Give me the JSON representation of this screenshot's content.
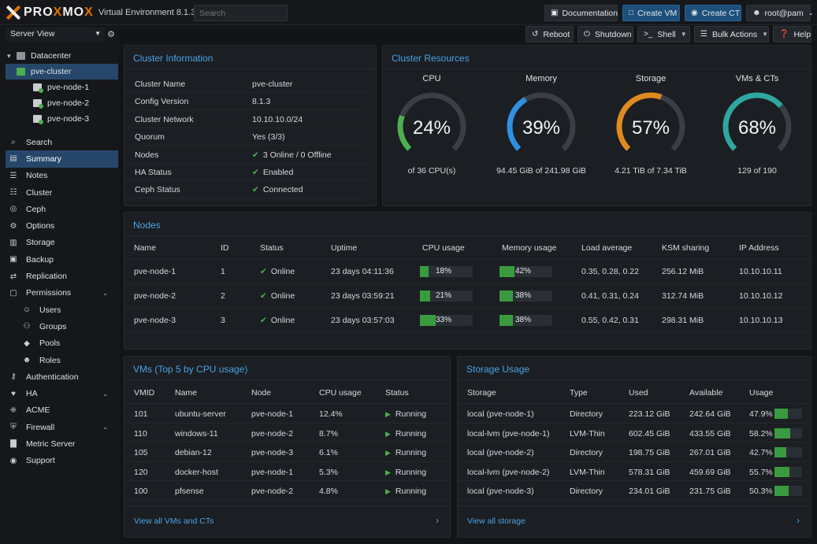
{
  "app": {
    "brand_a": "PRO",
    "brand_b": "X",
    "brand_c": "MO",
    "brand_d": "X",
    "version": "Virtual Environment 8.1.3",
    "search_placeholder": "Search"
  },
  "topbar": {
    "documentation": "Documentation",
    "create_vm": "Create VM",
    "create_ct": "Create CT",
    "user": "root@pam"
  },
  "actions": {
    "reboot": "Reboot",
    "shutdown": "Shutdown",
    "shell": "Shell",
    "bulk": "Bulk Actions",
    "help": "Help"
  },
  "sidebar": {
    "view": "Server View",
    "tree": [
      {
        "label": "Datacenter",
        "type": "dc"
      },
      {
        "label": "pve-cluster",
        "type": "cl"
      },
      {
        "label": "pve-node-1",
        "type": "nd"
      },
      {
        "label": "pve-node-2",
        "type": "nd"
      },
      {
        "label": "pve-node-3",
        "type": "nd"
      }
    ],
    "menu": [
      {
        "label": "Search",
        "icon": "search-icon"
      },
      {
        "label": "Summary",
        "icon": "book-icon"
      },
      {
        "label": "Notes",
        "icon": "notes-icon"
      },
      {
        "label": "Cluster",
        "icon": "server-icon"
      },
      {
        "label": "Ceph",
        "icon": "ceph-icon"
      },
      {
        "label": "Options",
        "icon": "gear-icon"
      },
      {
        "label": "Storage",
        "icon": "database-icon"
      },
      {
        "label": "Backup",
        "icon": "save-icon"
      },
      {
        "label": "Replication",
        "icon": "retweet-icon"
      },
      {
        "label": "Permissions",
        "icon": "unlock-icon"
      },
      {
        "label": "Users",
        "icon": "user-icon"
      },
      {
        "label": "Groups",
        "icon": "users-icon"
      },
      {
        "label": "Pools",
        "icon": "tags-icon"
      },
      {
        "label": "Roles",
        "icon": "male-icon"
      },
      {
        "label": "Authentication",
        "icon": "key-icon"
      },
      {
        "label": "HA",
        "icon": "heartbeat-icon"
      },
      {
        "label": "ACME",
        "icon": "certificate-icon"
      },
      {
        "label": "Firewall",
        "icon": "shield-icon"
      },
      {
        "label": "Metric Server",
        "icon": "bar-chart-icon"
      },
      {
        "label": "Support",
        "icon": "support-icon"
      }
    ]
  },
  "cluster_info": {
    "title": "Cluster Information",
    "rows": [
      {
        "k": "Cluster Name",
        "v": "pve-cluster"
      },
      {
        "k": "Config Version",
        "v": "8.1.3"
      },
      {
        "k": "Cluster Network",
        "v": "10.10.10.0/24"
      },
      {
        "k": "Quorum",
        "v": "Yes (3/3)"
      },
      {
        "k": "Nodes",
        "v": "3 Online / 0 Offline"
      },
      {
        "k": "HA Status",
        "v": "Enabled"
      },
      {
        "k": "Ceph Status",
        "v": "Connected"
      }
    ]
  },
  "resources": {
    "title": "Cluster Resources",
    "gauges": [
      {
        "label": "CPU",
        "pct_text": "24%",
        "value": 24,
        "sub": "of 36 CPU(s)",
        "color": "#4caf50"
      },
      {
        "label": "Memory",
        "pct_text": "39%",
        "value": 39,
        "sub": "94.45 GiB of 241.98 GiB",
        "color": "#2f8fe0"
      },
      {
        "label": "Storage",
        "pct_text": "57%",
        "value": 57,
        "sub": "4.21 TiB of 7.34 TiB",
        "color": "#e08a1e"
      },
      {
        "label": "VMs & CTs",
        "pct_text": "68%",
        "value": 68,
        "sub": "129 of 190",
        "color": "#2fa7a0"
      }
    ]
  },
  "nodes": {
    "title": "Nodes",
    "headers": [
      "Name",
      "ID",
      "Status",
      "Uptime",
      "CPU usage",
      "Memory usage",
      "Load average",
      "KSM sharing",
      "IP Address"
    ],
    "rows": [
      {
        "name": "pve-node-1",
        "id": "1",
        "status": "Online",
        "uptime": "23 days 04:11:36",
        "cpu": "18%",
        "cpu_v": 18,
        "mem": "42%",
        "mem_v": 42,
        "load": "0.35, 0.28, 0.22",
        "ksm": "256.12 MiB",
        "ip": "10.10.10.11"
      },
      {
        "name": "pve-node-2",
        "id": "2",
        "status": "Online",
        "uptime": "23 days 03:59:21",
        "cpu": "21%",
        "cpu_v": 21,
        "mem": "38%",
        "mem_v": 38,
        "load": "0.41, 0.31, 0.24",
        "ksm": "312.74 MiB",
        "ip": "10.10.10.12"
      },
      {
        "name": "pve-node-3",
        "id": "3",
        "status": "Online",
        "uptime": "23 days 03:57:03",
        "cpu": "33%",
        "cpu_v": 33,
        "mem": "38%",
        "mem_v": 38,
        "load": "0.55, 0.42, 0.31",
        "ksm": "298.31 MiB",
        "ip": "10.10.10.13"
      }
    ]
  },
  "vms": {
    "title": "VMs (Top 5 by CPU usage)",
    "headers": [
      "VMID",
      "Name",
      "Node",
      "CPU usage",
      "Status"
    ],
    "rows": [
      {
        "vmid": "101",
        "name": "ubuntu-server",
        "node": "pve-node-1",
        "cpu": "12.4%",
        "status": "Running"
      },
      {
        "vmid": "110",
        "name": "windows-11",
        "node": "pve-node-2",
        "cpu": "8.7%",
        "status": "Running"
      },
      {
        "vmid": "105",
        "name": "debian-12",
        "node": "pve-node-3",
        "cpu": "6.1%",
        "status": "Running"
      },
      {
        "vmid": "120",
        "name": "docker-host",
        "node": "pve-node-1",
        "cpu": "5.3%",
        "status": "Running"
      },
      {
        "vmid": "100",
        "name": "pfsense",
        "node": "pve-node-2",
        "cpu": "4.8%",
        "status": "Running"
      }
    ],
    "footer": "View all VMs and CTs"
  },
  "storage": {
    "title": "Storage Usage",
    "headers": [
      "Storage",
      "Type",
      "Used",
      "Available",
      "Usage"
    ],
    "rows": [
      {
        "name": "local (pve-node-1)",
        "type": "Directory",
        "used": "223.12 GiB",
        "avail": "242.64 GiB",
        "usage": "47.9%",
        "v": 47.9
      },
      {
        "name": "local-lvm (pve-node-1)",
        "type": "LVM-Thin",
        "used": "602.45 GiB",
        "avail": "433.55 GiB",
        "usage": "58.2%",
        "v": 58.2
      },
      {
        "name": "local (pve-node-2)",
        "type": "Directory",
        "used": "198.75 GiB",
        "avail": "267.01 GiB",
        "usage": "42.7%",
        "v": 42.7
      },
      {
        "name": "local-lvm (pve-node-2)",
        "type": "LVM-Thin",
        "used": "578.31 GiB",
        "avail": "459.69 GiB",
        "usage": "55.7%",
        "v": 55.7
      },
      {
        "name": "local (pve-node-3)",
        "type": "Directory",
        "used": "234.01 GiB",
        "avail": "231.75 GiB",
        "usage": "50.3%",
        "v": 50.3
      }
    ],
    "footer": "View all storage"
  }
}
